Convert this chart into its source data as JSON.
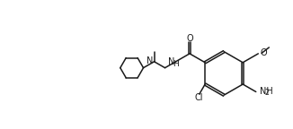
{
  "background_color": "#ffffff",
  "line_color": "#1a1a1a",
  "line_width": 1.1,
  "font_size": 7.0,
  "figsize": [
    3.26,
    1.44
  ],
  "dpi": 100,
  "xlim": [
    0,
    3.26
  ],
  "ylim": [
    0,
    1.44
  ]
}
